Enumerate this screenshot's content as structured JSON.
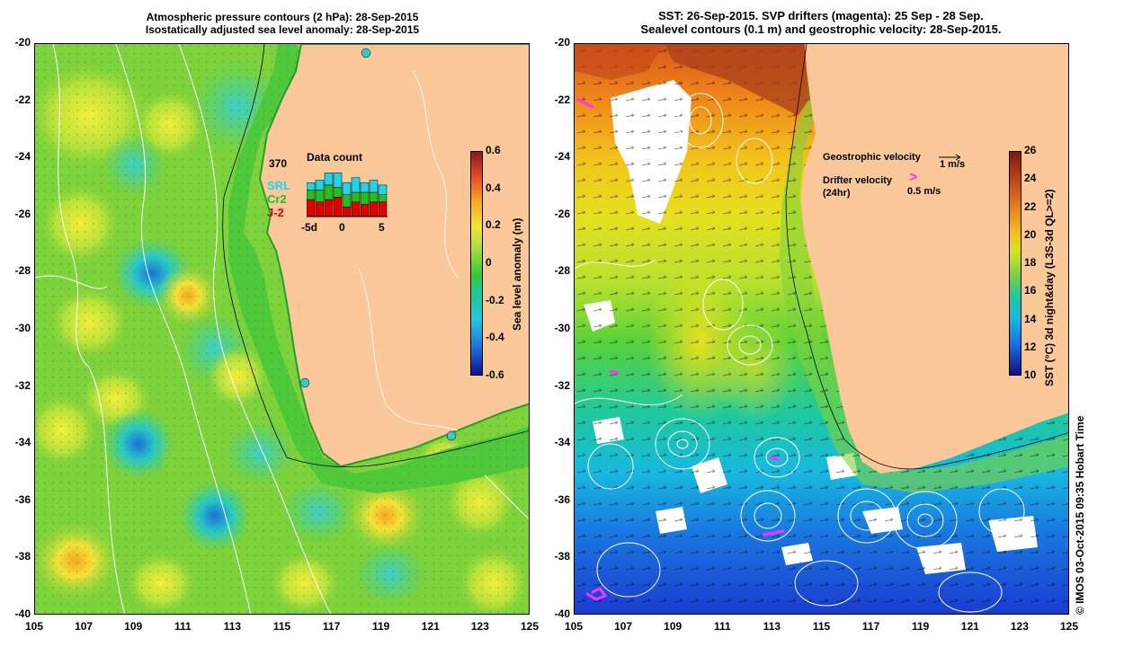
{
  "left_panel": {
    "title_line1": "Atmospheric pressure contours (2 hPa): 28-Sep-2015",
    "title_line2": "Isostatically adjusted sea level anomaly: 28-Sep-2015",
    "colorbar": {
      "title": "Sea level anomaly (m)",
      "ticks": [
        "0.6",
        "0.4",
        "0.2",
        "0",
        "-0.2",
        "-0.4",
        "-0.6"
      ]
    },
    "inset": {
      "title": "Data count",
      "max_count": "370",
      "legend": [
        {
          "label": "SRL",
          "color": "#22d4e8"
        },
        {
          "label": "Cr2",
          "color": "#22c022"
        },
        {
          "label": "J-2",
          "color": "#e00000"
        }
      ],
      "x_ticks": [
        "-5d",
        "0",
        "5"
      ],
      "bars": [
        {
          "srl": 0.15,
          "cr2": 0.2,
          "j2": 0.35
        },
        {
          "srl": 0.2,
          "cr2": 0.25,
          "j2": 0.3
        },
        {
          "srl": 0.25,
          "cr2": 0.3,
          "j2": 0.35
        },
        {
          "srl": 0.3,
          "cr2": 0.2,
          "j2": 0.4
        },
        {
          "srl": 0.25,
          "cr2": 0.25,
          "j2": 0.2
        },
        {
          "srl": 0.3,
          "cr2": 0.2,
          "j2": 0.3
        },
        {
          "srl": 0.2,
          "cr2": 0.25,
          "j2": 0.25
        },
        {
          "srl": 0.25,
          "cr2": 0.2,
          "j2": 0.3
        },
        {
          "srl": 0.2,
          "cr2": 0.15,
          "j2": 0.3
        }
      ]
    }
  },
  "right_panel": {
    "title_line1": "SST: 26-Sep-2015. SVP drifters (magenta): 25 Sep - 28 Sep.",
    "title_line2": "Sealevel contours (0.1 m) and geostrophic velocity: 28-Sep-2015.",
    "colorbar": {
      "title": "SST (°C) 3d night&day (L3S-3d QL>=2)",
      "ticks": [
        "26",
        "24",
        "22",
        "20",
        "18",
        "16",
        "14",
        "12",
        "10"
      ]
    },
    "legend": {
      "geo_label": "Geostrophic velocity",
      "geo_scale": "1 m/s",
      "drifter_label": "Drifter velocity",
      "drifter_sub": "(24hr)",
      "drifter_scale": "0.5 m/s",
      "drifter_glyph": ">"
    }
  },
  "axes": {
    "y_ticks": [
      "-20",
      "-22",
      "-24",
      "-26",
      "-28",
      "-30",
      "-32",
      "-34",
      "-36",
      "-38",
      "-40"
    ],
    "x_ticks": [
      "105",
      "107",
      "109",
      "111",
      "113",
      "115",
      "117",
      "119",
      "121",
      "123",
      "125"
    ]
  },
  "credit": "© IMOS 03-Oct-2015 09:35 Hobart Time",
  "colors": {
    "land": "#fbc89a",
    "ocean_green": "#33cc33",
    "drifter": "#ff33ff"
  }
}
